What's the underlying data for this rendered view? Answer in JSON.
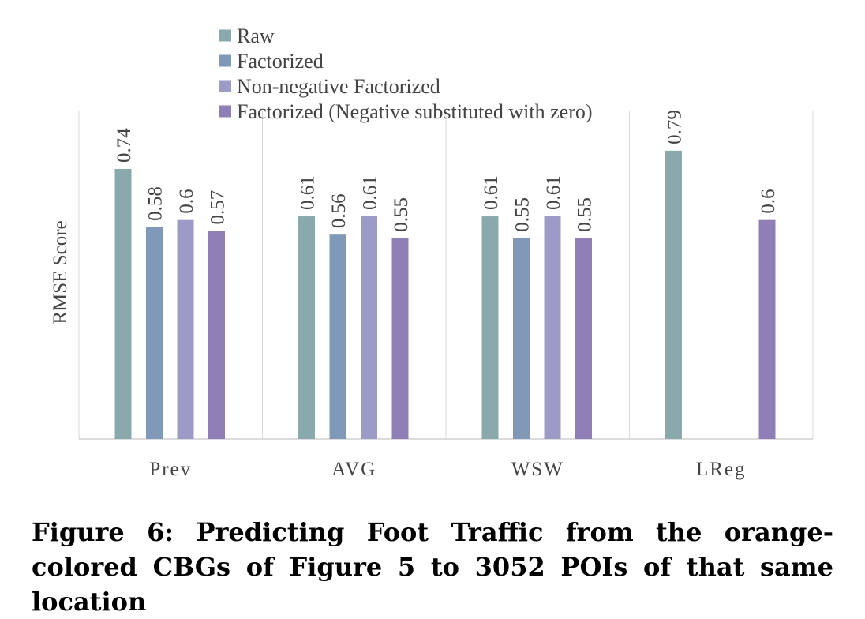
{
  "chart_data": {
    "type": "bar",
    "categories": [
      "Prev",
      "AVG",
      "WSW",
      "LReg"
    ],
    "series": [
      {
        "name": "Raw",
        "color": "#8aa9ad",
        "values": [
          0.74,
          0.61,
          0.61,
          0.79
        ]
      },
      {
        "name": "Factorized",
        "color": "#8099b8",
        "values": [
          0.58,
          0.56,
          0.55,
          null
        ]
      },
      {
        "name": "Non-negative Factorized",
        "color": "#9c9ac6",
        "values": [
          0.6,
          0.61,
          0.61,
          null
        ]
      },
      {
        "name": "Factorized (Negative substituted with zero)",
        "color": "#8f7fb6",
        "values": [
          0.57,
          0.55,
          0.55,
          0.6
        ]
      }
    ],
    "data_labels": [
      [
        "0.74",
        "0.61",
        "0.61",
        "0.79"
      ],
      [
        "0.58",
        "0.56",
        "0.55",
        null
      ],
      [
        "0.6",
        "0.61",
        "0.61",
        null
      ],
      [
        "0.57",
        "0.55",
        "0.55",
        "0.6"
      ]
    ],
    "title": "",
    "xlabel": "",
    "ylabel": "RMSE Score",
    "ylim": [
      0,
      0.9
    ],
    "grid": "vertical category separators",
    "legend": "top-left"
  },
  "caption": "Figure 6: Predicting Foot Traffic from the orange-colored CBGs of Figure 5 to 3052 POIs of that same location"
}
